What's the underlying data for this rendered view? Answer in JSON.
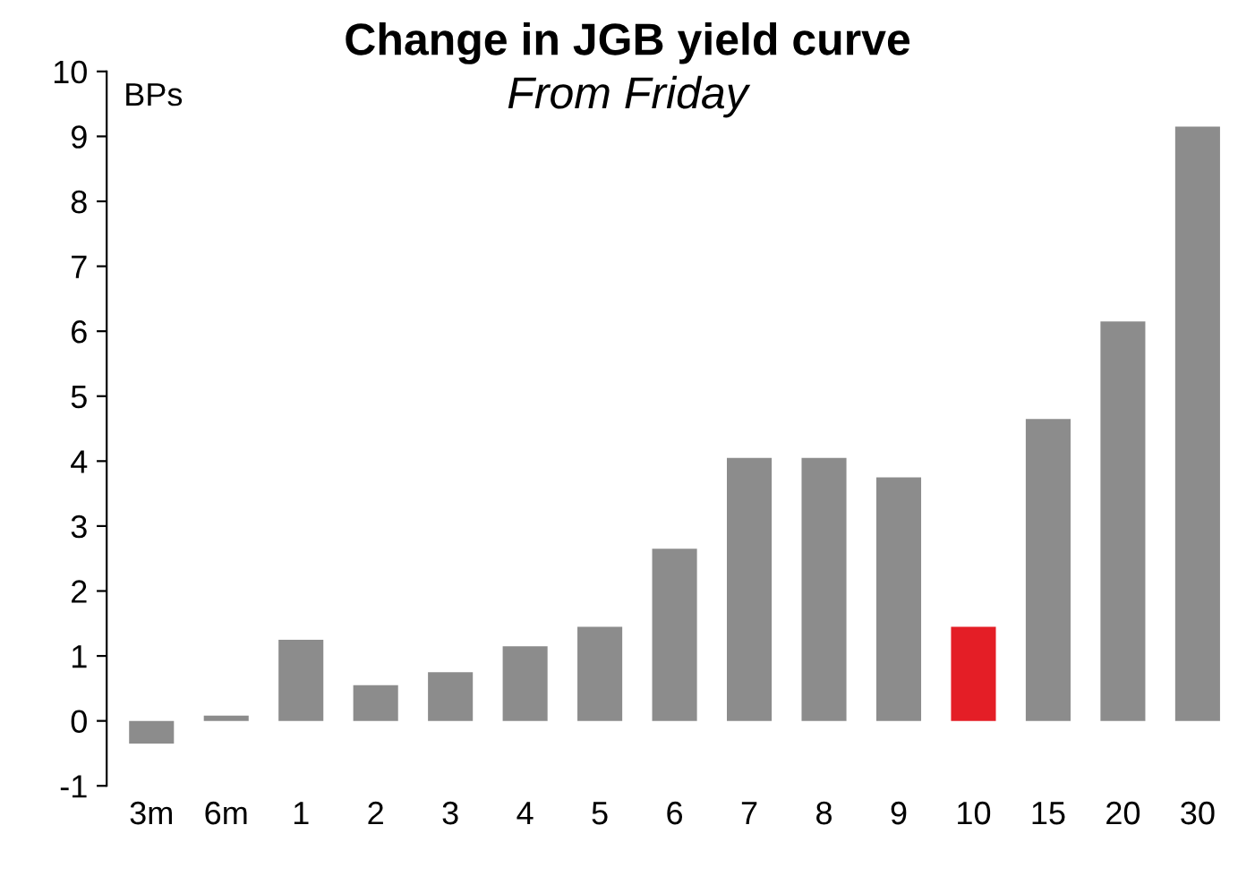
{
  "chart_data": {
    "type": "bar",
    "title": "Change in JGB yield curve",
    "subtitle": "From Friday",
    "ylabel": "BPs",
    "categories": [
      "3m",
      "6m",
      "1",
      "2",
      "3",
      "4",
      "5",
      "6",
      "7",
      "8",
      "9",
      "10",
      "15",
      "20",
      "30"
    ],
    "values": [
      -0.35,
      0.08,
      1.25,
      0.55,
      0.75,
      1.15,
      1.45,
      2.65,
      4.05,
      4.05,
      3.75,
      1.45,
      4.65,
      6.15,
      9.15
    ],
    "colors": [
      "#8c8c8c",
      "#8c8c8c",
      "#8c8c8c",
      "#8c8c8c",
      "#8c8c8c",
      "#8c8c8c",
      "#8c8c8c",
      "#8c8c8c",
      "#8c8c8c",
      "#8c8c8c",
      "#8c8c8c",
      "#e41e26",
      "#8c8c8c",
      "#8c8c8c",
      "#8c8c8c"
    ],
    "ylim": [
      -1,
      10
    ],
    "yticks": [
      -1,
      0,
      1,
      2,
      3,
      4,
      5,
      6,
      7,
      8,
      9,
      10
    ],
    "grid": false,
    "legend": false
  }
}
